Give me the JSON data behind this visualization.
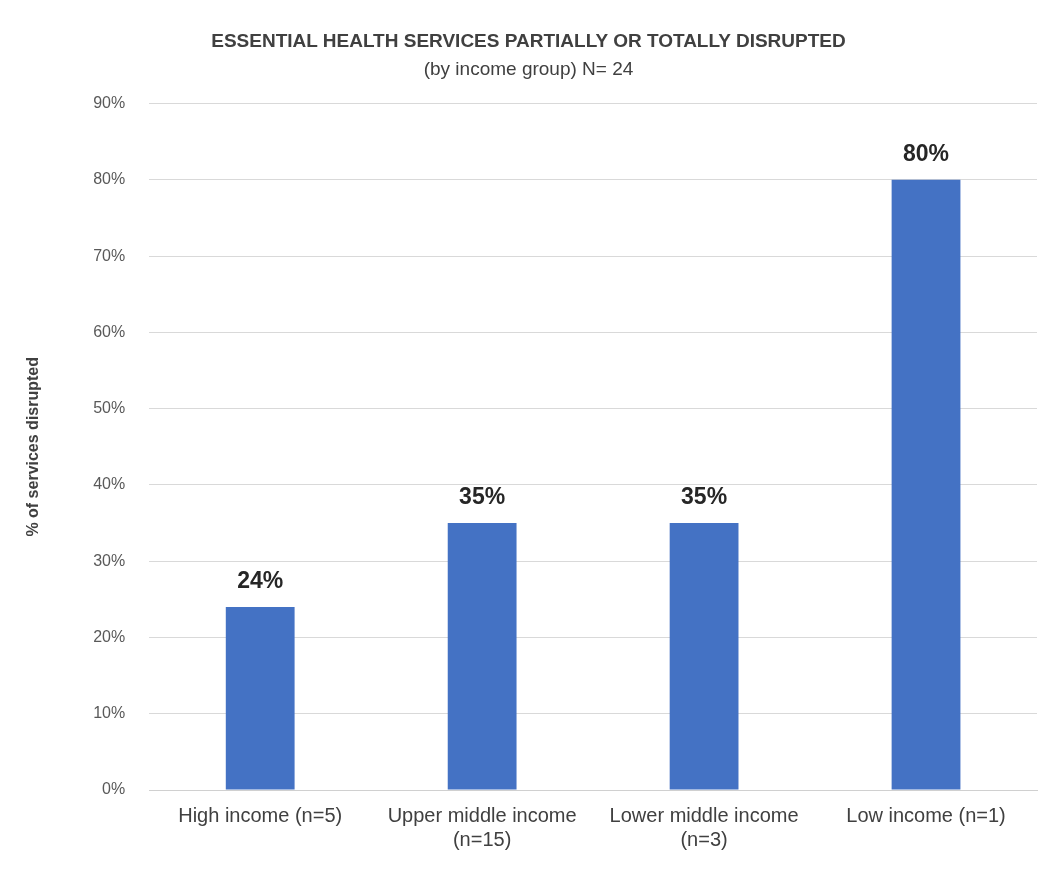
{
  "chart_data": {
    "type": "bar",
    "title": "ESSENTIAL HEALTH SERVICES PARTIALLY OR TOTALLY DISRUPTED",
    "subtitle": "(by income group) N= 24",
    "ylabel": "% of services disrupted",
    "categories": [
      "High income (n=5)",
      "Upper middle income (n=15)",
      "Lower middle income (n=3)",
      "Low income (n=1)"
    ],
    "values": [
      24,
      35,
      35,
      80
    ],
    "color": "#4472c4",
    "value_labels": [
      "24%",
      "35%",
      "35%",
      "80%"
    ],
    "ylim": [
      0,
      90
    ],
    "yticks": [
      {
        "value": 0,
        "label": "0%"
      },
      {
        "value": 10,
        "label": "10%"
      },
      {
        "value": 20,
        "label": "20%"
      },
      {
        "value": 30,
        "label": "30%"
      },
      {
        "value": 40,
        "label": "40%"
      },
      {
        "value": 50,
        "label": "50%"
      },
      {
        "value": 60,
        "label": "60%"
      },
      {
        "value": 70,
        "label": "70%"
      },
      {
        "value": 80,
        "label": "80%"
      },
      {
        "value": 90,
        "label": "90%"
      }
    ],
    "grid": "y",
    "legend": false
  }
}
